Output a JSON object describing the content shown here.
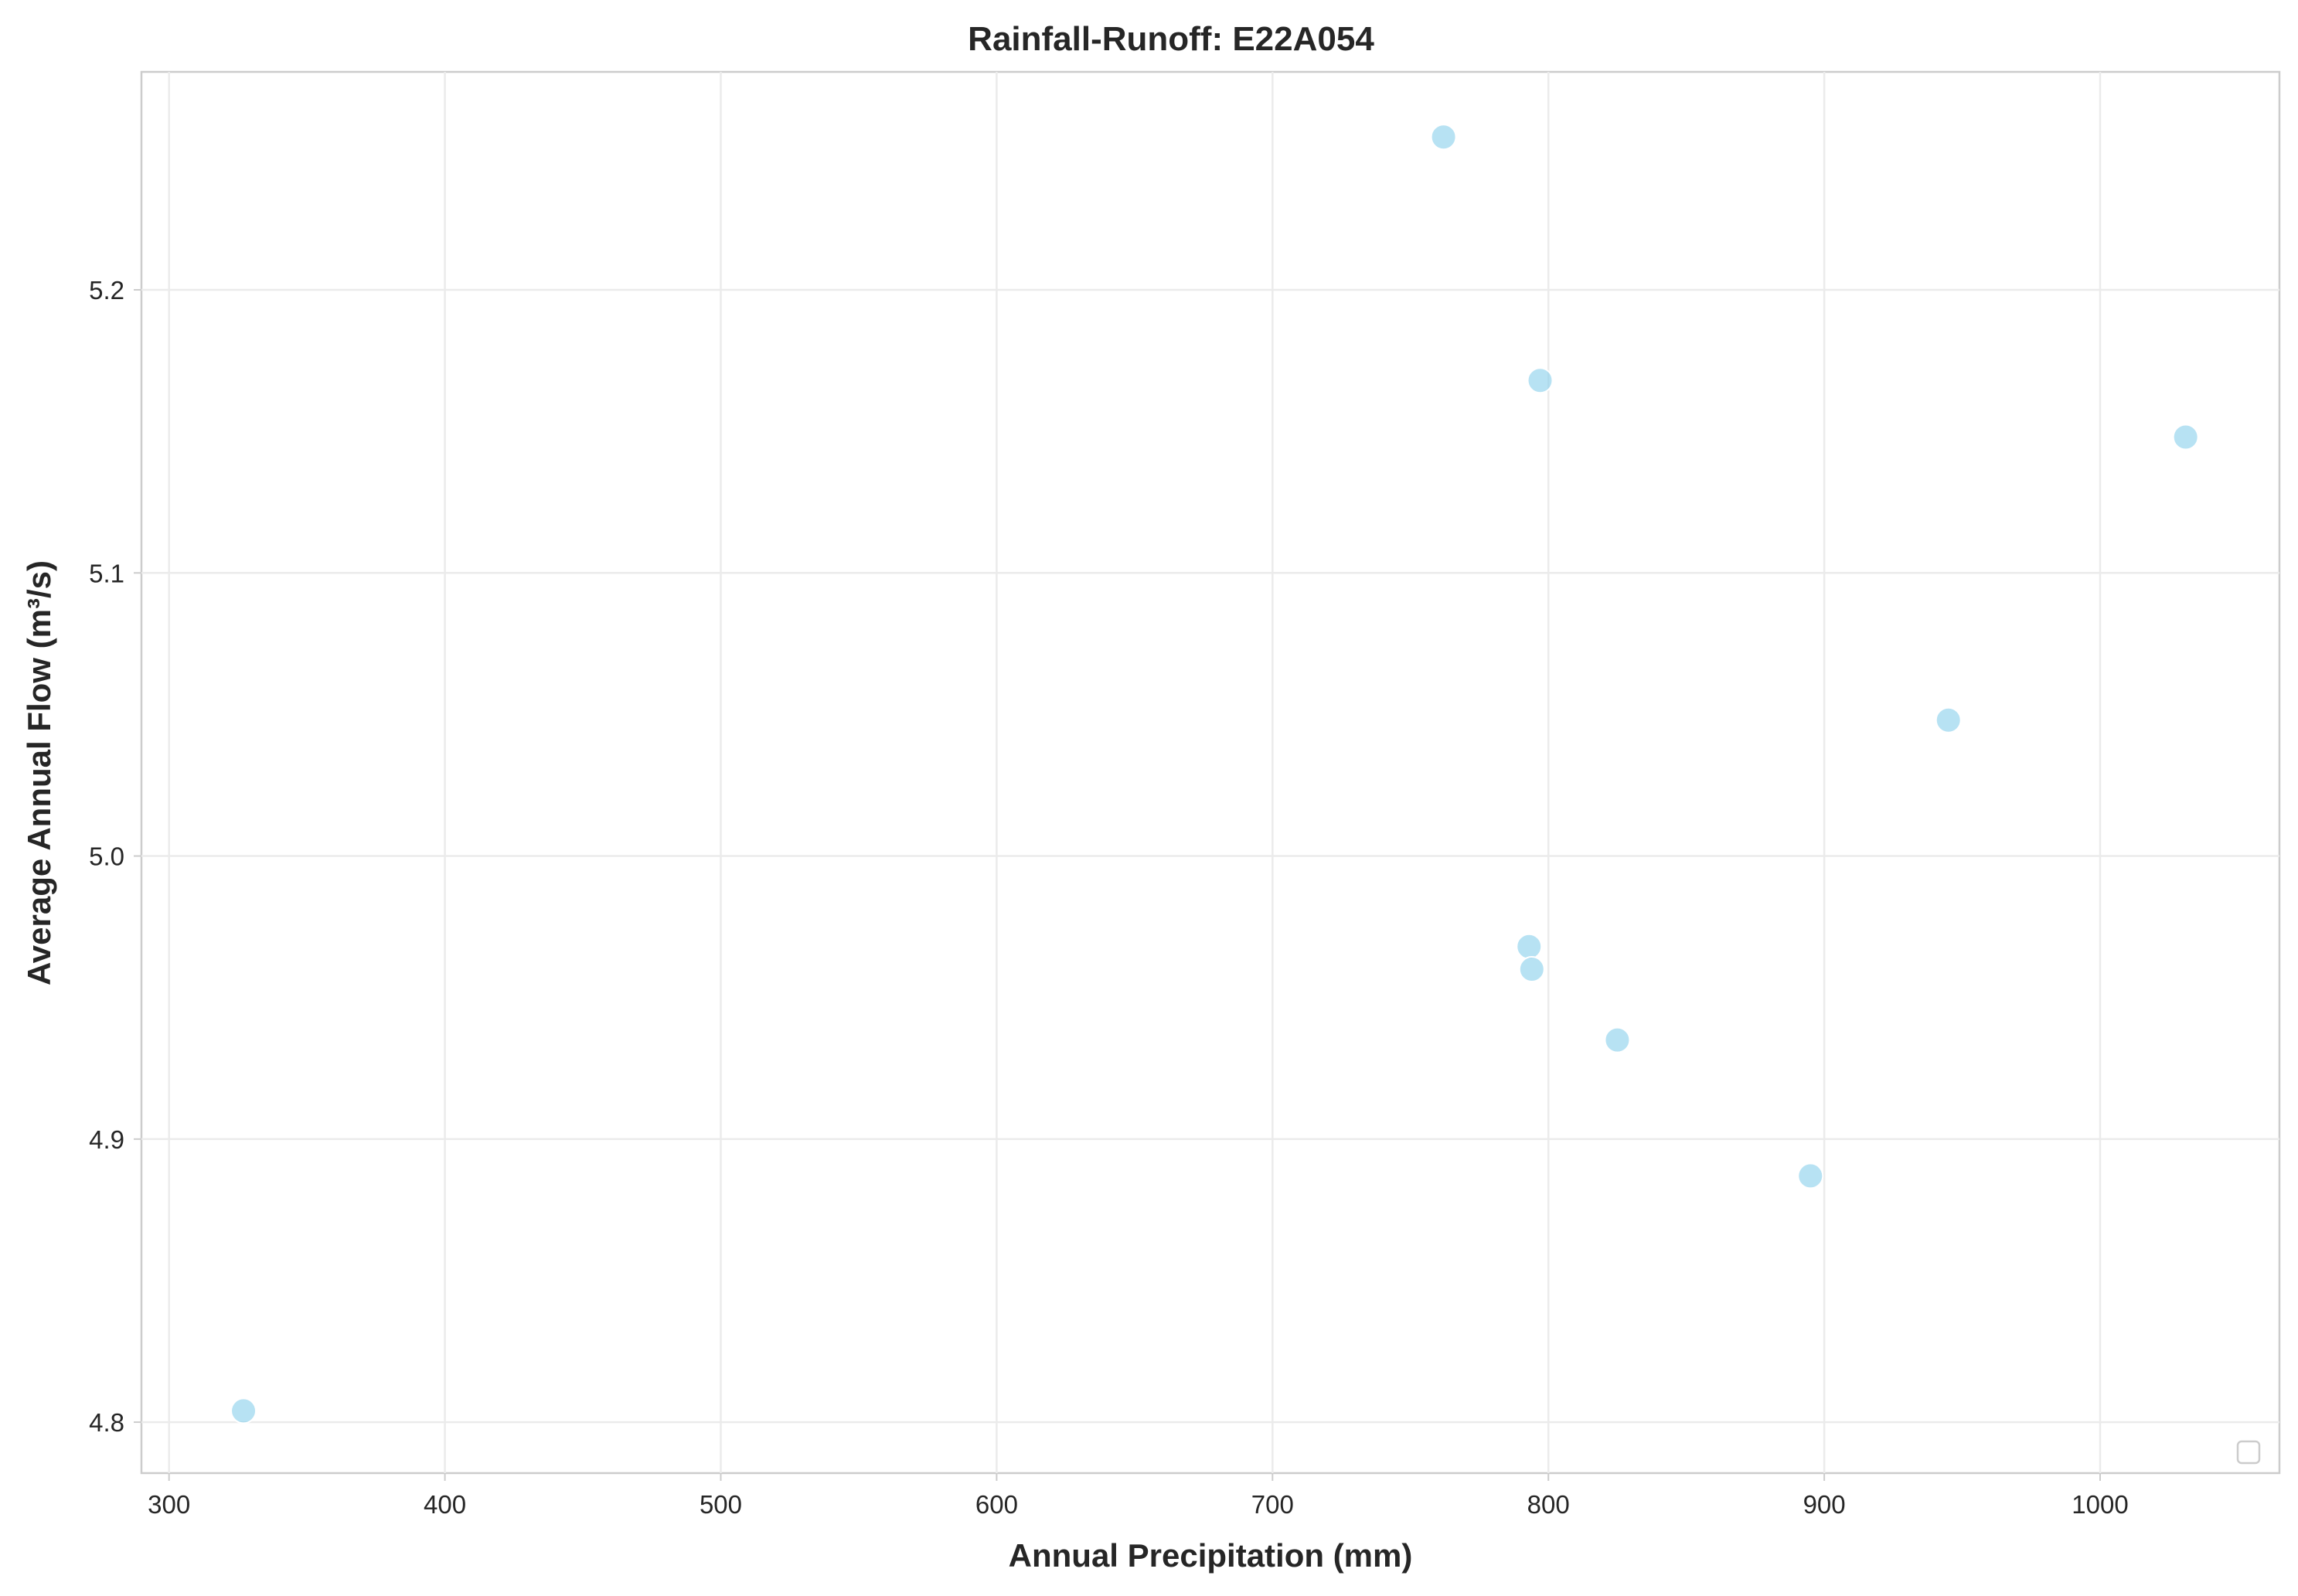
{
  "chart_data": {
    "type": "scatter",
    "title": "Rainfall-Runoff: E22A054",
    "xlabel": "Annual Precipitation (mm)",
    "ylabel": "Average Annual Flow (m³/s)",
    "xlim": [
      290,
      1065
    ],
    "ylim": [
      4.782,
      5.277
    ],
    "xticks": [
      300,
      400,
      500,
      600,
      700,
      800,
      900,
      1000
    ],
    "yticks": [
      4.8,
      4.9,
      5.0,
      5.1,
      5.2
    ],
    "xtick_labels": [
      "300",
      "400",
      "500",
      "600",
      "700",
      "800",
      "900",
      "1000"
    ],
    "ytick_labels": [
      "4.8",
      "4.9",
      "5.0",
      "5.1",
      "5.2"
    ],
    "grid": true,
    "legend": "lower-right",
    "point_color": "#87CEEB",
    "points": [
      {
        "x": 762,
        "y": 5.254
      },
      {
        "x": 797,
        "y": 5.168
      },
      {
        "x": 1031,
        "y": 5.148
      },
      {
        "x": 945,
        "y": 5.048
      },
      {
        "x": 793,
        "y": 4.968
      },
      {
        "x": 794,
        "y": 4.96
      },
      {
        "x": 825,
        "y": 4.935
      },
      {
        "x": 895,
        "y": 4.887
      },
      {
        "x": 327,
        "y": 4.804
      }
    ]
  }
}
